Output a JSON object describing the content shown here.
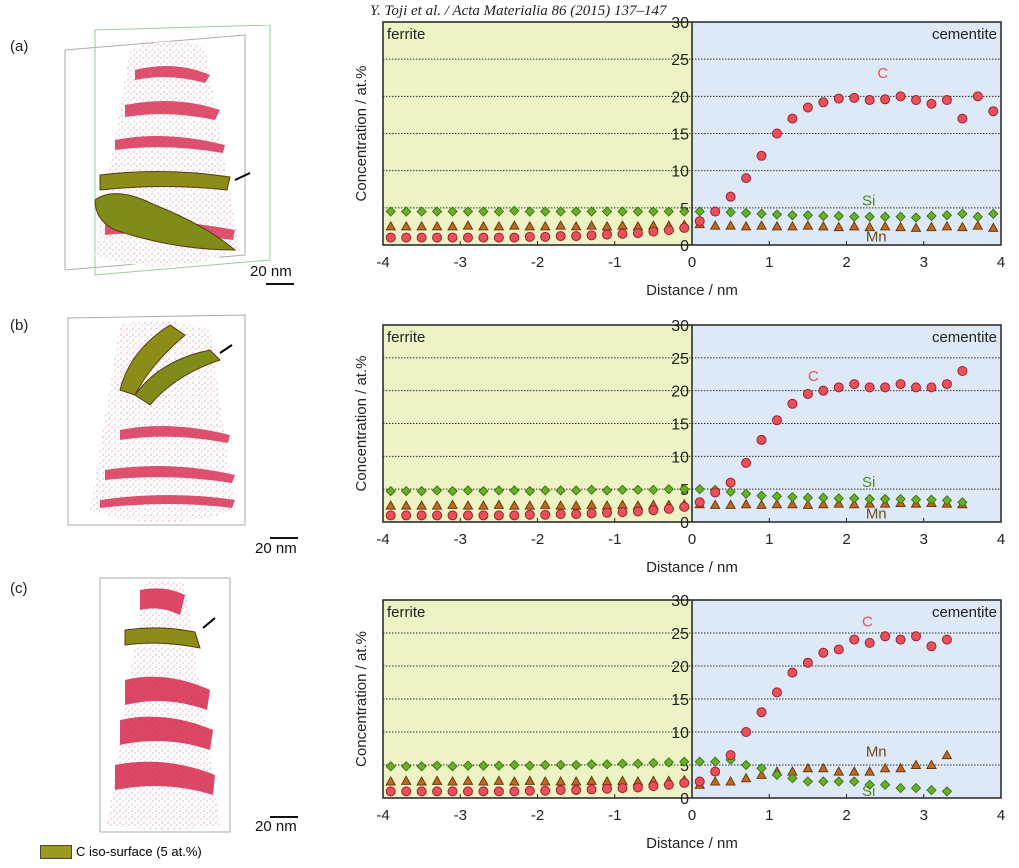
{
  "header": "Y. Toji et al. / Acta Materialia 86 (2015) 137–147",
  "panels": [
    {
      "label": "(a)",
      "scale_bar": "20 nm"
    },
    {
      "label": "(b)",
      "scale_bar": "20 nm"
    },
    {
      "label": "(c)",
      "scale_bar": "20 nm"
    }
  ],
  "legend": {
    "label": "C iso-surface (5 at.%)",
    "color": "#9a9a1e"
  },
  "colors": {
    "ferrite_bg": "#eef3c6",
    "cementite_bg": "#dde9f6",
    "C": "#e8505a",
    "Si": "#6aae2a",
    "Mn": "#c06a20"
  },
  "chart_data": [
    {
      "type": "scatter",
      "xlabel": "Distance / nm",
      "ylabel": "Concentration / at.%",
      "xlim": [
        -4,
        4
      ],
      "ylim": [
        0,
        30
      ],
      "xticks": [
        "-4",
        "-3",
        "-2",
        "-1",
        "0",
        "1",
        "2",
        "3",
        "4"
      ],
      "yticks": [
        "0",
        "5",
        "10",
        "15",
        "20",
        "25",
        "30"
      ],
      "regions": [
        "ferrite",
        "cementite"
      ],
      "grid": "horizontal dotted",
      "x": [
        -3.9,
        -3.7,
        -3.5,
        -3.3,
        -3.1,
        -2.9,
        -2.7,
        -2.5,
        -2.3,
        -2.1,
        -1.9,
        -1.7,
        -1.5,
        -1.3,
        -1.1,
        -0.9,
        -0.7,
        -0.5,
        -0.3,
        -0.1,
        0.1,
        0.3,
        0.5,
        0.7,
        0.9,
        1.1,
        1.3,
        1.5,
        1.7,
        1.9,
        2.1,
        2.3,
        2.5,
        2.7,
        2.9,
        3.1,
        3.3,
        3.5,
        3.7,
        3.9
      ],
      "series": [
        {
          "name": "C",
          "marker": "circle",
          "values": [
            1,
            1,
            1,
            1,
            1,
            1,
            1,
            1,
            1,
            1.1,
            1.1,
            1.2,
            1.2,
            1.3,
            1.4,
            1.5,
            1.6,
            1.8,
            2.0,
            2.3,
            3.2,
            4.5,
            6.5,
            9,
            12,
            15,
            17,
            18.5,
            19.2,
            19.7,
            19.8,
            19.5,
            19.6,
            20,
            19.5,
            19,
            19.5,
            17,
            20,
            18
          ]
        },
        {
          "name": "Si",
          "marker": "diamond",
          "values": [
            4.5,
            4.5,
            4.5,
            4.5,
            4.5,
            4.5,
            4.5,
            4.5,
            4.6,
            4.5,
            4.5,
            4.5,
            4.5,
            4.5,
            4.5,
            4.5,
            4.5,
            4.5,
            4.5,
            4.5,
            4.5,
            4.5,
            4.4,
            4.3,
            4.2,
            4.1,
            4,
            4,
            3.9,
            3.9,
            3.8,
            3.8,
            3.8,
            3.8,
            3.7,
            3.9,
            4,
            4.2,
            3.8,
            4.2
          ]
        },
        {
          "name": "Mn",
          "marker": "triangle",
          "values": [
            2.5,
            2.5,
            2.5,
            2.5,
            2.5,
            2.6,
            2.5,
            2.5,
            2.6,
            2.5,
            2.5,
            2.6,
            2.5,
            2.6,
            2.5,
            2.6,
            2.5,
            2.6,
            2.6,
            2.7,
            2.8,
            2.6,
            2.6,
            2.5,
            2.6,
            2.5,
            2.5,
            2.6,
            2.5,
            2.4,
            2.5,
            2.4,
            2.5,
            2.4,
            2.3,
            2.4,
            2.5,
            2.4,
            2.6,
            2.3
          ]
        }
      ],
      "series_labels": [
        {
          "text": "C",
          "x": 2.4,
          "y": 22.5
        },
        {
          "text": "Si",
          "x": 2.2,
          "y": 5.3
        },
        {
          "text": "Mn",
          "x": 2.25,
          "y": 0.5
        }
      ]
    },
    {
      "type": "scatter",
      "xlabel": "Distance / nm",
      "ylabel": "Concentration / at.%",
      "xlim": [
        -4,
        4
      ],
      "ylim": [
        0,
        30
      ],
      "xticks": [
        "-4",
        "-3",
        "-2",
        "-1",
        "0",
        "1",
        "2",
        "3",
        "4"
      ],
      "yticks": [
        "0",
        "5",
        "10",
        "15",
        "20",
        "25",
        "30"
      ],
      "regions": [
        "ferrite",
        "cementite"
      ],
      "grid": "horizontal dotted",
      "x": [
        -3.9,
        -3.7,
        -3.5,
        -3.3,
        -3.1,
        -2.9,
        -2.7,
        -2.5,
        -2.3,
        -2.1,
        -1.9,
        -1.7,
        -1.5,
        -1.3,
        -1.1,
        -0.9,
        -0.7,
        -0.5,
        -0.3,
        -0.1,
        0.1,
        0.3,
        0.5,
        0.7,
        0.9,
        1.1,
        1.3,
        1.5,
        1.7,
        1.9,
        2.1,
        2.3,
        2.5,
        2.7,
        2.9,
        3.1,
        3.3,
        3.5
      ],
      "series": [
        {
          "name": "C",
          "marker": "circle",
          "values": [
            1,
            1,
            1,
            1,
            1,
            1,
            1,
            1,
            1,
            1.1,
            1.1,
            1.2,
            1.2,
            1.3,
            1.4,
            1.5,
            1.6,
            1.8,
            2.0,
            2.3,
            3,
            4.5,
            6,
            9,
            12.5,
            15.5,
            18,
            19.5,
            20,
            20.5,
            21,
            20.5,
            20.5,
            21,
            20.5,
            20.5,
            21,
            23
          ]
        },
        {
          "name": "Si",
          "marker": "diamond",
          "values": [
            4.7,
            4.7,
            4.7,
            4.8,
            4.7,
            4.8,
            4.7,
            4.8,
            4.8,
            4.7,
            4.8,
            4.8,
            4.8,
            4.9,
            4.8,
            4.9,
            4.9,
            4.9,
            5,
            5,
            5,
            4.9,
            4.6,
            4.3,
            4,
            3.9,
            3.8,
            3.7,
            3.7,
            3.6,
            3.6,
            3.5,
            3.5,
            3.5,
            3.4,
            3.4,
            3.3,
            3
          ]
        },
        {
          "name": "Mn",
          "marker": "triangle",
          "values": [
            2.5,
            2.5,
            2.5,
            2.5,
            2.6,
            2.5,
            2.5,
            2.6,
            2.5,
            2.5,
            2.6,
            2.5,
            2.5,
            2.6,
            2.5,
            2.6,
            2.5,
            2.6,
            2.6,
            2.7,
            2.7,
            2.6,
            2.6,
            2.7,
            2.6,
            2.7,
            2.7,
            2.6,
            2.7,
            2.8,
            2.7,
            2.8,
            2.8,
            2.9,
            2.8,
            2.9,
            2.8,
            2.7
          ]
        }
      ],
      "series_labels": [
        {
          "text": "C",
          "x": 1.5,
          "y": 21.5
        },
        {
          "text": "Si",
          "x": 2.2,
          "y": 5.3
        },
        {
          "text": "Mn",
          "x": 2.25,
          "y": 0.5
        }
      ]
    },
    {
      "type": "scatter",
      "xlabel": "Distance / nm",
      "ylabel": "Concentration / at.%",
      "xlim": [
        -4,
        4
      ],
      "ylim": [
        0,
        30
      ],
      "xticks": [
        "-4",
        "-3",
        "-2",
        "-1",
        "0",
        "1",
        "2",
        "3",
        "4"
      ],
      "yticks": [
        "0",
        "5",
        "10",
        "15",
        "20",
        "25",
        "30"
      ],
      "regions": [
        "ferrite",
        "cementite"
      ],
      "grid": "horizontal dotted",
      "x": [
        -3.9,
        -3.7,
        -3.5,
        -3.3,
        -3.1,
        -2.9,
        -2.7,
        -2.5,
        -2.3,
        -2.1,
        -1.9,
        -1.7,
        -1.5,
        -1.3,
        -1.1,
        -0.9,
        -0.7,
        -0.5,
        -0.3,
        -0.1,
        0.1,
        0.3,
        0.5,
        0.7,
        0.9,
        1.1,
        1.3,
        1.5,
        1.7,
        1.9,
        2.1,
        2.3,
        2.5,
        2.7,
        2.9,
        3.1,
        3.3
      ],
      "series": [
        {
          "name": "C",
          "marker": "circle",
          "values": [
            1,
            1,
            1,
            1,
            1,
            1,
            1,
            1,
            1,
            1.1,
            1.1,
            1.2,
            1.2,
            1.3,
            1.4,
            1.5,
            1.6,
            1.8,
            2.0,
            2.3,
            2.5,
            4,
            6.5,
            10,
            13,
            16,
            19,
            20.5,
            22,
            22.5,
            24,
            23.5,
            24.5,
            24,
            24.5,
            23,
            24
          ]
        },
        {
          "name": "Si",
          "marker": "diamond",
          "values": [
            4.8,
            4.8,
            4.8,
            4.9,
            4.8,
            4.9,
            4.9,
            4.9,
            5,
            4.9,
            5,
            5,
            5,
            5.1,
            5.1,
            5.2,
            5.2,
            5.3,
            5.4,
            5.5,
            5.5,
            5.5,
            5.8,
            5,
            4.5,
            3.5,
            3,
            2.5,
            2.5,
            2.5,
            2.5,
            2,
            2,
            1.5,
            1.5,
            1.2,
            1.0
          ]
        },
        {
          "name": "Mn",
          "marker": "triangle",
          "values": [
            2.5,
            2.6,
            2.5,
            2.6,
            2.5,
            2.6,
            2.5,
            2.6,
            2.5,
            2.6,
            2.5,
            2.5,
            2.5,
            2.6,
            2.5,
            2.6,
            2.5,
            2.6,
            2.6,
            2.7,
            2,
            2.5,
            2.5,
            3,
            3.5,
            4,
            4,
            4.5,
            4.5,
            4,
            4,
            4,
            4.5,
            4.5,
            5,
            5,
            6.5
          ]
        }
      ],
      "series_labels": [
        {
          "text": "C",
          "x": 2.2,
          "y": 26
        },
        {
          "text": "Mn",
          "x": 2.25,
          "y": 6.3
        },
        {
          "text": "Si",
          "x": 2.2,
          "y": 0.3
        }
      ]
    }
  ]
}
